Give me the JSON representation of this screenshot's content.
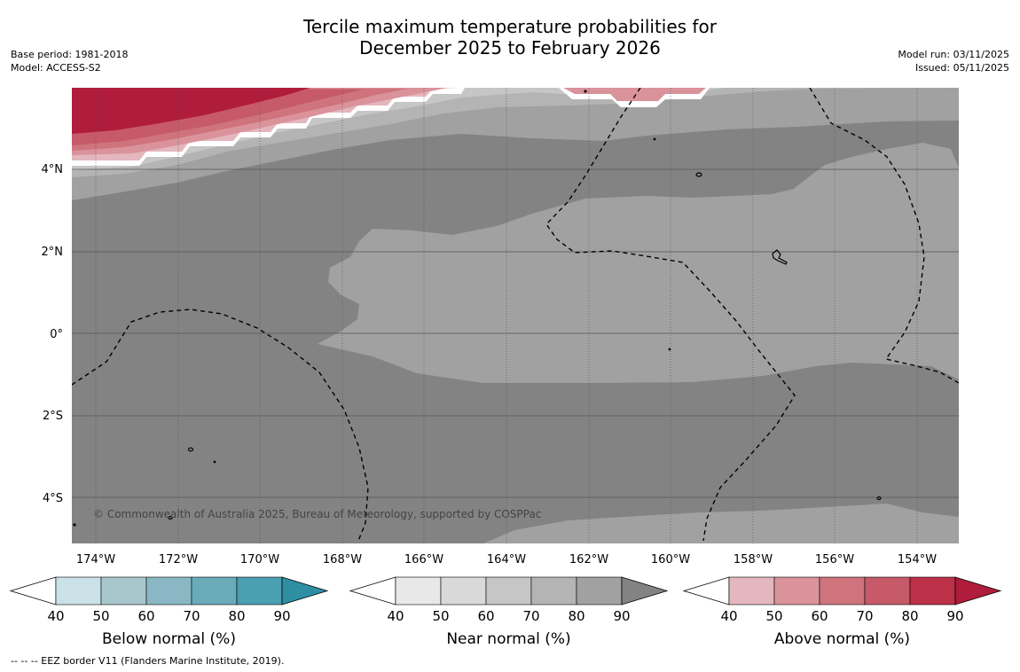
{
  "title": {
    "line1": "Tercile maximum temperature probabilities for",
    "line2": "December 2025 to February 2026"
  },
  "meta_left": {
    "base_period": "Base period: 1981-2018",
    "model": "Model: ACCESS-S2"
  },
  "meta_right": {
    "model_run": "Model run: 03/11/2025",
    "issued": "Issued: 05/11/2025"
  },
  "map": {
    "lat_labels": [
      "4°N",
      "2°N",
      "0°",
      "2°S",
      "4°S"
    ],
    "lon_labels": [
      "174°W",
      "172°W",
      "170°W",
      "168°W",
      "166°W",
      "164°W",
      "162°W",
      "160°W",
      "158°W",
      "156°W",
      "154°W"
    ],
    "credit": "© Commonwealth of Australia 2025, Bureau of Meteorology, supported by COSPPac"
  },
  "colorbars": [
    {
      "label": "Below normal (%)",
      "ticks": [
        "40",
        "50",
        "60",
        "70",
        "80",
        "90"
      ],
      "colors": [
        "#ffffff",
        "#c9e1e7",
        "#a8c7cd",
        "#8bb7c4",
        "#6aabba",
        "#4a9fb0",
        "#2e8fa3"
      ]
    },
    {
      "label": "Near normal (%)",
      "ticks": [
        "40",
        "50",
        "60",
        "70",
        "80",
        "90"
      ],
      "colors": [
        "#ffffff",
        "#e8e8e8",
        "#d9d9d9",
        "#c6c6c6",
        "#b4b4b4",
        "#a1a1a1",
        "#838383"
      ]
    },
    {
      "label": "Above normal (%)",
      "ticks": [
        "40",
        "50",
        "60",
        "70",
        "80",
        "90"
      ],
      "colors": [
        "#ffffff",
        "#e3b7bd",
        "#da939b",
        "#cf737d",
        "#c65a69",
        "#bc3048",
        "#b01c3c"
      ]
    }
  ],
  "footnote": "--  --  -- EEZ border V11 (Flanders Marine Institute, 2019)."
}
